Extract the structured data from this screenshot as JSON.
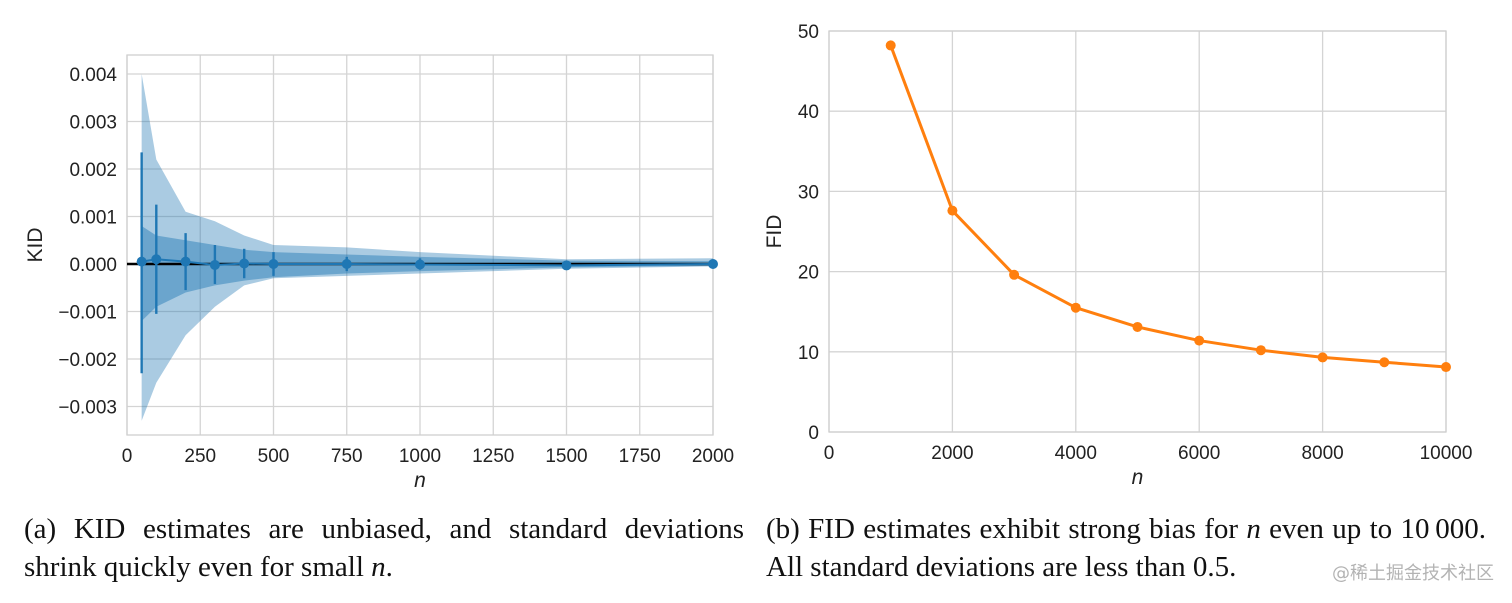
{
  "chart_data": [
    {
      "id": "kid",
      "type": "line",
      "xlabel": "n",
      "ylabel": "KID",
      "xlim": [
        0,
        2000
      ],
      "ylim": [
        -0.0036,
        0.0044
      ],
      "xticks": [
        0,
        250,
        500,
        750,
        1000,
        1250,
        1500,
        1750,
        2000
      ],
      "xtick_labels": [
        "0",
        "250",
        "500",
        "750",
        "1000",
        "1250",
        "1500",
        "1750",
        "2000"
      ],
      "yticks": [
        0.004,
        0.003,
        0.002,
        0.001,
        0.0,
        -0.001,
        -0.002,
        -0.003
      ],
      "ytick_labels": [
        "0.004",
        "0.003",
        "0.002",
        "0.001",
        "0.000",
        "−0.001",
        "−0.002",
        "−0.003"
      ],
      "grid": true,
      "reference_line": 0,
      "color": "#1f77b4",
      "x": [
        50,
        100,
        200,
        300,
        400,
        500,
        750,
        1000,
        1500,
        2000
      ],
      "y": [
        5e-05,
        0.0001,
        5e-05,
        -2e-05,
        1e-05,
        0.0,
        0.0,
        -1e-05,
        -3e-05,
        0.0
      ],
      "error_low": [
        -0.0023,
        -0.00105,
        -0.00055,
        -0.00042,
        -0.0003,
        -0.00025,
        -0.00015,
        -0.00012,
        -5e-05,
        -2e-05
      ],
      "error_high": [
        0.00235,
        0.00125,
        0.00065,
        0.0004,
        0.00032,
        0.00025,
        0.00015,
        0.00012,
        3e-05,
        3e-05
      ],
      "band_outer_low": [
        -0.0033,
        -0.0025,
        -0.0015,
        -0.0009,
        -0.00045,
        -0.0003,
        -0.00025,
        -0.0002,
        -0.0001,
        -5e-05
      ],
      "band_outer_high": [
        0.004,
        0.0022,
        0.0011,
        0.0009,
        0.0006,
        0.0004,
        0.00035,
        0.00025,
        0.0001,
        0.00012
      ],
      "band_inner_low": [
        -0.0012,
        -0.0009,
        -0.0006,
        -0.00045,
        -0.00035,
        -0.00028,
        -0.0002,
        -0.00015,
        -7e-05,
        -4e-05
      ],
      "band_inner_high": [
        0.0008,
        0.0006,
        0.0005,
        0.0004,
        0.0003,
        0.00025,
        0.0002,
        0.00015,
        7e-05,
        6e-05
      ]
    },
    {
      "id": "fid",
      "type": "line",
      "xlabel": "n",
      "ylabel": "FID",
      "xlim": [
        0,
        10000
      ],
      "ylim": [
        0,
        50
      ],
      "xticks": [
        0,
        2000,
        4000,
        6000,
        8000,
        10000
      ],
      "xtick_labels": [
        "0",
        "2000",
        "4000",
        "6000",
        "8000",
        "10000"
      ],
      "yticks": [
        0,
        10,
        20,
        30,
        40,
        50
      ],
      "ytick_labels": [
        "0",
        "10",
        "20",
        "30",
        "40",
        "50"
      ],
      "grid": true,
      "color": "#ff7f0e",
      "x": [
        1000,
        2000,
        3000,
        4000,
        5000,
        6000,
        7000,
        8000,
        9000,
        10000
      ],
      "y": [
        48.2,
        27.6,
        19.6,
        15.5,
        13.1,
        11.4,
        10.2,
        9.3,
        8.7,
        8.1
      ]
    }
  ],
  "captions": {
    "a": {
      "label": "(a)",
      "text": "KID estimates are unbiased, and standard deviations shrink quickly even for small",
      "var": "n",
      "end": "."
    },
    "b": {
      "label": "(b)",
      "text_1": "FID estimates exhibit strong bias for",
      "var": "n",
      "text_2": "even up to 10 000. All standard deviations are less than 0.5."
    }
  },
  "watermark": "@稀土掘金技术社区"
}
